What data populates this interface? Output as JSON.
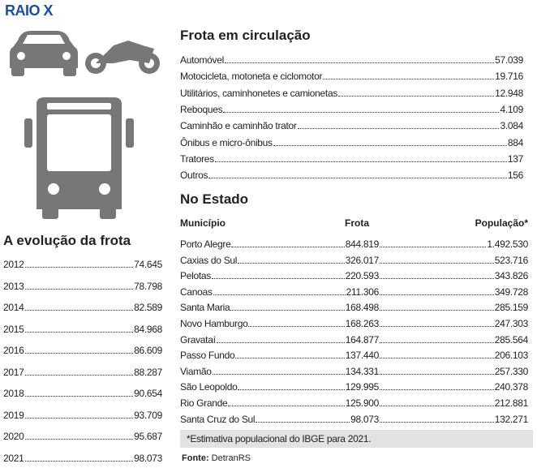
{
  "header": {
    "title": "RAIO X"
  },
  "fleet": {
    "title": "Frota em circulação",
    "rows": [
      [
        "Automóvel",
        "57.039"
      ],
      [
        "Motocicleta, motoneta e ciclomotor",
        "19.716"
      ],
      [
        "Utilitários, caminhonetes e camionetas",
        "12.948"
      ],
      [
        "Reboques",
        "4.109"
      ],
      [
        "Caminhão e caminhão trator",
        "3.084"
      ],
      [
        "Ônibus e micro-ônibus",
        "884"
      ],
      [
        "Tratores",
        "137"
      ],
      [
        "Outros",
        "156"
      ]
    ]
  },
  "state": {
    "title": "No Estado",
    "headers": [
      "Município",
      "Frota",
      "População*"
    ],
    "rows": [
      [
        "Porto Alegre",
        "844.819",
        "1.492.530"
      ],
      [
        "Caxias do Sul",
        "326.017",
        "523.716"
      ],
      [
        "Pelotas",
        "220.593",
        "343.826"
      ],
      [
        "Canoas",
        "211.306",
        "349.728"
      ],
      [
        "Santa Maria",
        "168.498",
        "285.159"
      ],
      [
        "Novo Hamburgo",
        "168.263",
        "247.303"
      ],
      [
        "Gravataí",
        "164.877",
        "285.564"
      ],
      [
        "Passo Fundo",
        "137.440",
        "206.103"
      ],
      [
        "Viamão",
        "134.331",
        "257.330"
      ],
      [
        "São Leopoldo",
        "129.995",
        "240.378"
      ],
      [
        "Rio Grande",
        "125.900",
        "212.881"
      ],
      [
        "Santa Cruz do Sul",
        "98.073",
        "132.271"
      ]
    ],
    "note": "*Estimativa populacional do IBGE para 2021."
  },
  "evolution": {
    "title": "A evolução da frota",
    "rows": [
      [
        "2012",
        "74.645"
      ],
      [
        "2013",
        "78.798"
      ],
      [
        "2014",
        "82.589"
      ],
      [
        "2015",
        "84.968"
      ],
      [
        "2016",
        "86.609"
      ],
      [
        "2017",
        "88.287"
      ],
      [
        "2018",
        "90.654"
      ],
      [
        "2019",
        "93.709"
      ],
      [
        "2020",
        "95.687"
      ],
      [
        "2021",
        "98.073"
      ]
    ]
  },
  "source": {
    "label": "Fonte:",
    "text": "DetranRS"
  }
}
